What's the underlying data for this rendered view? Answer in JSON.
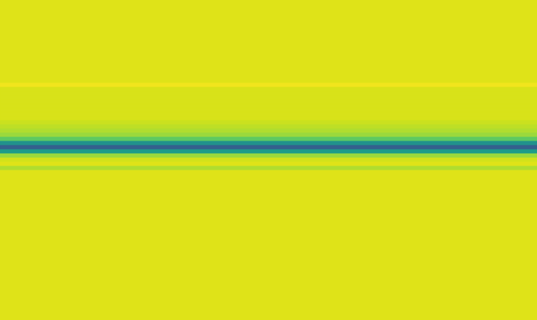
{
  "chart_data": {
    "type": "heatmap",
    "tick_labels": false,
    "zlim": [
      0,
      1
    ],
    "cells": [
      [
        0.95
      ],
      [
        0.95
      ],
      [
        0.95
      ],
      [
        0.95
      ],
      [
        0.95
      ],
      [
        0.95
      ],
      [
        0.95
      ],
      [
        0.95
      ],
      [
        0.95
      ],
      [
        0.95
      ],
      [
        0.95
      ],
      [
        0.95
      ],
      [
        0.95
      ],
      [
        0.95
      ],
      [
        0.95
      ],
      [
        0.95
      ],
      [
        0.95
      ],
      [
        0.95
      ],
      [
        0.95
      ],
      [
        0.95
      ],
      [
        0.98
      ],
      [
        0.94
      ],
      [
        0.94
      ],
      [
        0.94
      ],
      [
        0.94
      ],
      [
        0.94
      ],
      [
        0.94
      ],
      [
        0.94
      ],
      [
        0.94
      ],
      [
        0.92
      ],
      [
        0.9
      ],
      [
        0.88
      ],
      [
        0.85
      ],
      [
        0.75
      ],
      [
        0.5
      ],
      [
        0.3
      ],
      [
        0.55
      ],
      [
        0.85
      ],
      [
        0.93
      ],
      [
        0.95
      ],
      [
        0.88
      ],
      [
        0.95
      ],
      [
        0.95
      ],
      [
        0.95
      ],
      [
        0.95
      ],
      [
        0.95
      ],
      [
        0.95
      ],
      [
        0.95
      ],
      [
        0.95
      ],
      [
        0.95
      ],
      [
        0.95
      ],
      [
        0.95
      ],
      [
        0.95
      ],
      [
        0.95
      ],
      [
        0.95
      ],
      [
        0.95
      ],
      [
        0.95
      ],
      [
        0.95
      ],
      [
        0.95
      ],
      [
        0.95
      ],
      [
        0.95
      ],
      [
        0.95
      ],
      [
        0.95
      ],
      [
        0.95
      ],
      [
        0.95
      ],
      [
        0.95
      ],
      [
        0.95
      ],
      [
        0.95
      ],
      [
        0.95
      ],
      [
        0.95
      ],
      [
        0.95
      ],
      [
        0.95
      ],
      [
        0.95
      ],
      [
        0.95
      ],
      [
        0.95
      ],
      [
        0.95
      ],
      [
        0.95
      ]
    ]
  }
}
